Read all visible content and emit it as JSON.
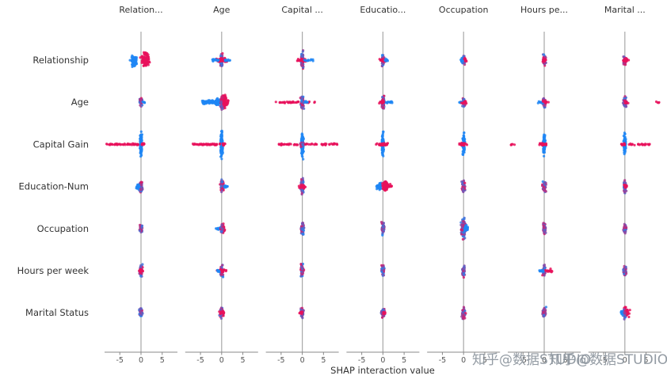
{
  "watermark": "知乎@数据STUDIO",
  "chart_data": {
    "type": "scatter",
    "subtype": "shap-interaction-beeswarm-matrix",
    "xlabel": "SHAP interaction value",
    "x_ticks": [
      -5,
      0,
      5
    ],
    "x_range": [
      -8.8,
      8.8
    ],
    "grid": false,
    "legend": "none",
    "columns": [
      "Relation...",
      "Age",
      "Capital ...",
      "Educatio...",
      "Occupation",
      "Hours pe...",
      "Marital ..."
    ],
    "rows": [
      "Relationship",
      "Age",
      "Capital Gain",
      "Education-Num",
      "Occupation",
      "Hours per week",
      "Marital Status"
    ],
    "colors": {
      "positive": "#e8125c",
      "negative": "#1f86f5",
      "zero_line": "#a8a8a8",
      "axis": "#888888",
      "label": "#333333"
    },
    "cells": [
      [
        [
          {
            "c": "b",
            "x": -1.7,
            "sx": 0.55,
            "sy": 9,
            "n": 80
          },
          {
            "c": "r",
            "x": 1.0,
            "sx": 0.85,
            "sy": 11,
            "n": 110
          }
        ],
        [
          {
            "c": "m",
            "x": 0,
            "sx": 0.25,
            "sy": 10,
            "n": 55
          },
          {
            "c": "r",
            "x": 0,
            "sx": 1.0,
            "sy": 3,
            "n": 45
          },
          {
            "c": "b",
            "u": [
              -2.2,
              -0.5
            ],
            "sy": 2,
            "n": 12
          },
          {
            "c": "b",
            "u": [
              0.5,
              2.0
            ],
            "sy": 2,
            "n": 10
          }
        ],
        [
          {
            "c": "m",
            "x": 0,
            "sx": 0.25,
            "sy": 13,
            "n": 75
          },
          {
            "c": "r",
            "x": -0.1,
            "sx": 0.8,
            "sy": 2.5,
            "n": 28
          },
          {
            "c": "b",
            "u": [
              0.4,
              2.6
            ],
            "sy": 2,
            "n": 14
          }
        ],
        [
          {
            "c": "m",
            "x": 0,
            "sx": 0.25,
            "sy": 9,
            "n": 55
          },
          {
            "c": "r",
            "x": 0,
            "sx": 0.7,
            "sy": 2.5,
            "n": 22
          },
          {
            "c": "b",
            "u": [
              0.3,
              1.2
            ],
            "sy": 2,
            "n": 8
          }
        ],
        [
          {
            "c": "m",
            "x": 0,
            "sx": 0.28,
            "sy": 6.5,
            "n": 40
          },
          {
            "c": "r",
            "x": 0.2,
            "sx": 0.45,
            "sy": 3,
            "n": 14
          },
          {
            "c": "b",
            "x": -0.4,
            "sx": 0.3,
            "sy": 2.5,
            "n": 10
          }
        ],
        [
          {
            "c": "m",
            "x": 0,
            "sx": 0.28,
            "sy": 8,
            "n": 48
          },
          {
            "c": "r",
            "x": 0.1,
            "sx": 0.5,
            "sy": 3,
            "n": 16
          }
        ],
        [
          {
            "c": "m",
            "x": 0,
            "sx": 0.28,
            "sy": 8,
            "n": 48
          },
          {
            "c": "r",
            "x": 0.2,
            "sx": 0.5,
            "sy": 3,
            "n": 16
          }
        ]
      ],
      [
        [
          {
            "c": "m",
            "x": 0,
            "sx": 0.28,
            "sy": 7.5,
            "n": 45
          },
          {
            "c": "b",
            "u": [
              0.3,
              0.9
            ],
            "sy": 1.5,
            "n": 6
          }
        ],
        [
          {
            "c": "b",
            "u": [
              -4.6,
              -0.3
            ],
            "sy": 3.2,
            "n": 80
          },
          {
            "c": "b",
            "x": -1.0,
            "sx": 0.6,
            "sy": 5,
            "n": 50
          },
          {
            "c": "r",
            "x": 0.45,
            "sx": 0.5,
            "sy": 11,
            "n": 120
          },
          {
            "c": "m",
            "x": 0,
            "sx": 0.2,
            "sy": 13,
            "n": 40
          },
          {
            "c": "r",
            "u": [
              0.4,
              1.6
            ],
            "sy": 4,
            "n": 20
          }
        ],
        [
          {
            "c": "r",
            "u": [
              -6.5,
              -0.4
            ],
            "sy": 1.4,
            "n": 32
          },
          {
            "c": "m",
            "x": 0,
            "sx": 0.3,
            "sy": 11,
            "n": 70
          },
          {
            "c": "r",
            "u": [
              0.3,
              3.8
            ],
            "sy": 1.2,
            "n": 10
          },
          {
            "c": "b",
            "u": [
              0.3,
              1.4
            ],
            "sy": 1.8,
            "n": 8
          }
        ],
        [
          {
            "c": "m",
            "x": 0,
            "sx": 0.3,
            "sy": 10,
            "n": 60
          },
          {
            "c": "b",
            "u": [
              0.4,
              2.3
            ],
            "sy": 1.6,
            "n": 14
          },
          {
            "c": "r",
            "x": -0.2,
            "sx": 0.5,
            "sy": 3,
            "n": 14
          }
        ],
        [
          {
            "c": "m",
            "x": 0,
            "sx": 0.3,
            "sy": 8,
            "n": 45
          },
          {
            "c": "b",
            "x": -0.7,
            "sx": 0.4,
            "sy": 1.6,
            "n": 9
          },
          {
            "c": "r",
            "x": 0.2,
            "sx": 0.5,
            "sy": 2.2,
            "n": 12
          }
        ],
        [
          {
            "c": "m",
            "x": 0,
            "sx": 0.3,
            "sy": 8,
            "n": 45
          },
          {
            "c": "b",
            "x": -0.8,
            "sx": 0.5,
            "sy": 1.6,
            "n": 10
          },
          {
            "c": "r",
            "x": 0.3,
            "sx": 0.5,
            "sy": 2.2,
            "n": 12
          }
        ],
        [
          {
            "c": "m",
            "x": 0,
            "sx": 0.3,
            "sy": 8,
            "n": 45
          },
          {
            "c": "r",
            "x": 0.3,
            "sx": 0.45,
            "sy": 2.2,
            "n": 10
          },
          {
            "c": "r",
            "u": [
              7.4,
              8.3
            ],
            "sy": 1.2,
            "n": 4
          }
        ]
      ],
      [
        [
          {
            "c": "b",
            "x": 0,
            "sx": 0.2,
            "sy": 19,
            "n": 150
          },
          {
            "c": "r",
            "u": [
              -8.2,
              -0.4
            ],
            "sy": 1.3,
            "n": 60
          },
          {
            "c": "r",
            "x": 0.4,
            "sx": 0.35,
            "sy": 2,
            "n": 10
          }
        ],
        [
          {
            "c": "b",
            "x": 0,
            "sx": 0.2,
            "sy": 18,
            "n": 150
          },
          {
            "c": "r",
            "u": [
              -6.8,
              -0.4
            ],
            "sy": 1.3,
            "n": 55
          },
          {
            "c": "r",
            "x": 0.4,
            "sx": 0.4,
            "sy": 2,
            "n": 10
          }
        ],
        [
          {
            "c": "b",
            "x": 0,
            "sx": 0.2,
            "sy": 18,
            "n": 150
          },
          {
            "c": "r",
            "u": [
              -5.5,
              -0.3
            ],
            "sy": 1.3,
            "n": 26
          },
          {
            "c": "r",
            "u": [
              0.3,
              8.3
            ],
            "sy": 1.3,
            "n": 38
          },
          {
            "c": "m",
            "x": 0,
            "sx": 0.4,
            "sy": 4,
            "n": 18
          }
        ],
        [
          {
            "c": "b",
            "x": 0,
            "sx": 0.2,
            "sy": 16,
            "n": 120
          },
          {
            "c": "r",
            "x": 0,
            "sx": 1.1,
            "sy": 2,
            "n": 42
          }
        ],
        [
          {
            "c": "b",
            "x": 0,
            "sx": 0.2,
            "sy": 15,
            "n": 110
          },
          {
            "c": "r",
            "x": -0.2,
            "sx": 0.7,
            "sy": 2,
            "n": 28
          }
        ],
        [
          {
            "c": "b",
            "x": 0,
            "sx": 0.2,
            "sy": 15,
            "n": 110
          },
          {
            "c": "r",
            "x": -0.2,
            "sx": 0.8,
            "sy": 2,
            "n": 28
          },
          {
            "c": "r",
            "u": [
              -8.6,
              -7.0
            ],
            "sy": 1,
            "n": 5
          }
        ],
        [
          {
            "c": "b",
            "x": 0,
            "sx": 0.2,
            "sy": 15,
            "n": 110
          },
          {
            "c": "r",
            "u": [
              0.3,
              6.2
            ],
            "sy": 1.4,
            "n": 26
          },
          {
            "c": "r",
            "x": -0.4,
            "sx": 0.4,
            "sy": 1.8,
            "n": 12
          }
        ]
      ],
      [
        [
          {
            "c": "m",
            "x": 0,
            "sx": 0.3,
            "sy": 9,
            "n": 58
          },
          {
            "c": "b",
            "x": -0.7,
            "sx": 0.4,
            "sy": 3.5,
            "n": 16
          }
        ],
        [
          {
            "c": "r",
            "x": 0.1,
            "sx": 0.35,
            "sy": 8,
            "n": 60
          },
          {
            "c": "b",
            "u": [
              0.4,
              1.9
            ],
            "sy": 2,
            "n": 14
          },
          {
            "c": "m",
            "x": 0,
            "sx": 0.2,
            "sy": 10,
            "n": 24
          }
        ],
        [
          {
            "c": "m",
            "x": 0,
            "sx": 0.3,
            "sy": 12,
            "n": 78
          },
          {
            "c": "r",
            "x": 0,
            "sx": 0.7,
            "sy": 2.5,
            "n": 24
          }
        ],
        [
          {
            "c": "b",
            "x": -0.9,
            "sx": 0.45,
            "sy": 5,
            "n": 48
          },
          {
            "c": "r",
            "x": 0.55,
            "sx": 0.5,
            "sy": 8,
            "n": 95
          },
          {
            "c": "r",
            "u": [
              0.9,
              2.1
            ],
            "sy": 3,
            "n": 16
          }
        ],
        [
          {
            "c": "m",
            "x": 0,
            "sx": 0.3,
            "sy": 10,
            "n": 62
          }
        ],
        [
          {
            "c": "m",
            "x": 0,
            "sx": 0.3,
            "sy": 10,
            "n": 62
          }
        ],
        [
          {
            "c": "m",
            "x": 0,
            "sx": 0.3,
            "sy": 9,
            "n": 55
          },
          {
            "c": "r",
            "x": 0.2,
            "sx": 0.4,
            "sy": 3,
            "n": 14
          }
        ]
      ],
      [
        [
          {
            "c": "m",
            "x": 0,
            "sx": 0.3,
            "sy": 7,
            "n": 45
          }
        ],
        [
          {
            "c": "b",
            "u": [
              -1.7,
              -0.4
            ],
            "sy": 2,
            "n": 13
          },
          {
            "c": "r",
            "x": 0.2,
            "sx": 0.4,
            "sy": 7,
            "n": 48
          },
          {
            "c": "m",
            "x": 0,
            "sx": 0.2,
            "sy": 8.5,
            "n": 20
          }
        ],
        [
          {
            "c": "m",
            "x": 0,
            "sx": 0.3,
            "sy": 10,
            "n": 60
          }
        ],
        [
          {
            "c": "m",
            "x": 0,
            "sx": 0.3,
            "sy": 9,
            "n": 55
          }
        ],
        [
          {
            "c": "m",
            "x": 0,
            "sx": 0.42,
            "sy": 13,
            "n": 150
          },
          {
            "c": "b",
            "x": 0.55,
            "sx": 0.3,
            "sy": 5,
            "n": 42
          }
        ],
        [
          {
            "c": "m",
            "x": 0,
            "sx": 0.3,
            "sy": 9,
            "n": 55
          }
        ],
        [
          {
            "c": "m",
            "x": 0,
            "sx": 0.3,
            "sy": 7,
            "n": 45
          }
        ]
      ],
      [
        [
          {
            "c": "m",
            "x": 0,
            "sx": 0.3,
            "sy": 10,
            "n": 58
          },
          {
            "c": "r",
            "x": 0,
            "sx": 0.4,
            "sy": 4,
            "n": 18
          }
        ],
        [
          {
            "c": "m",
            "x": 0,
            "sx": 0.3,
            "sy": 9,
            "n": 55
          },
          {
            "c": "r",
            "x": 0,
            "sx": 0.8,
            "sy": 2.5,
            "n": 24
          },
          {
            "c": "b",
            "x": -0.8,
            "sx": 0.4,
            "sy": 2,
            "n": 10
          }
        ],
        [
          {
            "c": "m",
            "x": 0,
            "sx": 0.3,
            "sy": 10,
            "n": 58
          }
        ],
        [
          {
            "c": "m",
            "x": 0,
            "sx": 0.3,
            "sy": 9,
            "n": 55
          }
        ],
        [
          {
            "c": "m",
            "x": 0,
            "sx": 0.3,
            "sy": 9,
            "n": 55
          }
        ],
        [
          {
            "c": "m",
            "x": 0,
            "sx": 0.25,
            "sy": 9,
            "n": 50
          },
          {
            "c": "r",
            "u": [
              0.3,
              1.9
            ],
            "sy": 2.5,
            "n": 18
          },
          {
            "c": "b",
            "x": -0.7,
            "sx": 0.4,
            "sy": 2,
            "n": 10
          }
        ],
        [
          {
            "c": "m",
            "x": 0,
            "sx": 0.3,
            "sy": 8,
            "n": 48
          }
        ]
      ],
      [
        [
          {
            "c": "m",
            "x": 0,
            "sx": 0.3,
            "sy": 8,
            "n": 48
          }
        ],
        [
          {
            "c": "m",
            "x": 0,
            "sx": 0.3,
            "sy": 9,
            "n": 52
          },
          {
            "c": "r",
            "x": 0,
            "sx": 0.7,
            "sy": 2.5,
            "n": 18
          }
        ],
        [
          {
            "c": "m",
            "x": 0,
            "sx": 0.3,
            "sy": 8,
            "n": 48
          },
          {
            "c": "r",
            "x": -0.4,
            "sx": 0.5,
            "sy": 2,
            "n": 10
          }
        ],
        [
          {
            "c": "m",
            "x": 0,
            "sx": 0.3,
            "sy": 8,
            "n": 48
          },
          {
            "c": "r",
            "x": 0.2,
            "sx": 0.4,
            "sy": 2.5,
            "n": 12
          }
        ],
        [
          {
            "c": "m",
            "x": 0,
            "sx": 0.3,
            "sy": 8,
            "n": 46
          }
        ],
        [
          {
            "c": "m",
            "x": 0,
            "sx": 0.3,
            "sy": 8,
            "n": 46
          }
        ],
        [
          {
            "c": "r",
            "x": 0.3,
            "sx": 0.6,
            "sy": 8,
            "n": 60
          },
          {
            "c": "b",
            "x": -0.5,
            "sx": 0.3,
            "sy": 4,
            "n": 16
          },
          {
            "c": "m",
            "x": 0,
            "sx": 0.2,
            "sy": 9,
            "n": 20
          }
        ]
      ]
    ]
  }
}
